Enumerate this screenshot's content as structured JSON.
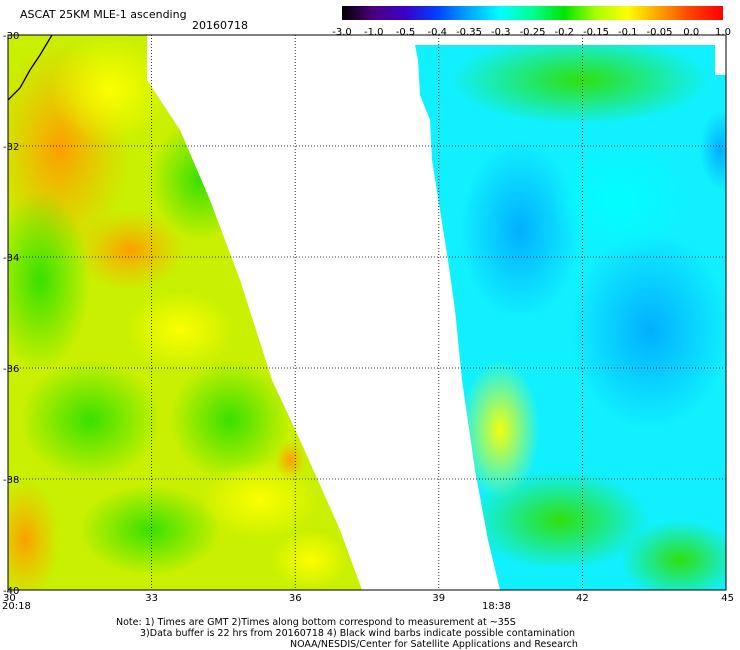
{
  "header": {
    "title": "ASCAT 25KM MLE-1 ascending",
    "date": "20160718"
  },
  "colorbar": {
    "labels": [
      "-3.0",
      "-1.0",
      "-0.5",
      "-0.4",
      "-0.35",
      "-0.3",
      "-0.25",
      "-0.2",
      "-0.15",
      "-0.1",
      "-0.05",
      "0.0",
      "1.0"
    ],
    "colors": [
      "#000000",
      "#4b0082",
      "#3a00c8",
      "#0040ff",
      "#00a8ff",
      "#00ffff",
      "#00ff90",
      "#00e600",
      "#a8ff00",
      "#ffff00",
      "#ffa000",
      "#ff4000",
      "#ff0000"
    ]
  },
  "axes": {
    "lat_labels": [
      "-30",
      "-32",
      "-34",
      "-36",
      "-38",
      "-40"
    ],
    "lat_values": [
      -30,
      -32,
      -34,
      -36,
      -38,
      -40
    ],
    "lon_labels": [
      "30",
      "33",
      "36",
      "39",
      "42",
      "45"
    ],
    "lon_values": [
      30,
      33,
      36,
      39,
      42,
      45
    ],
    "lat_range": [
      -40,
      -30
    ],
    "lon_range": [
      30,
      45
    ],
    "grid": true
  },
  "swaths": [
    {
      "time": "20:18",
      "color": "#ff0000"
    },
    {
      "time": "18:38",
      "color": "#ff0000"
    }
  ],
  "notes": [
    "Note: 1) Times are GMT 2)Times along bottom correspond to measurement at ~35S",
    "3)Data buffer is 22 hrs from 20160718 4) Black wind barbs indicate possible contamination",
    "NOAA/NESDIS/Center for Satellite Applications and Research"
  ]
}
